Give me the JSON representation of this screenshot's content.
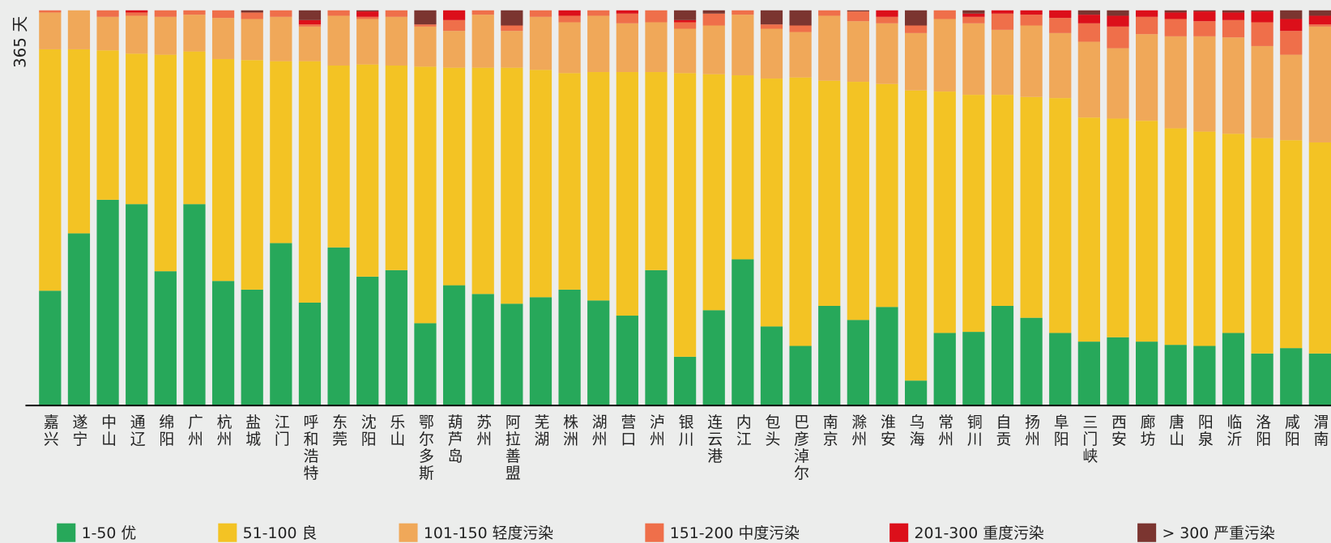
{
  "chart_data": {
    "type": "stacked_bar",
    "ylabel": "365 天",
    "ylim": [
      0,
      365
    ],
    "categories": [
      "嘉兴",
      "遂宁",
      "中山",
      "通辽",
      "绵阳",
      "广州",
      "杭州",
      "盐城",
      "江门",
      "呼和浩特",
      "东莞",
      "沈阳",
      "乐山",
      "鄂尔多斯",
      "葫芦岛",
      "苏州",
      "阿拉善盟",
      "芜湖",
      "株洲",
      "湖州",
      "营口",
      "泸州",
      "银川",
      "连云港",
      "内江",
      "包头",
      "巴彦淖尔",
      "南京",
      "滁州",
      "淮安",
      "乌海",
      "常州",
      "铜川",
      "自贡",
      "扬州",
      "阜阳",
      "三门峡",
      "西安",
      "廊坊",
      "唐山",
      "阳泉",
      "临沂",
      "洛阳",
      "咸阳",
      "渭南"
    ],
    "series": [
      {
        "name": "1-50 优",
        "color": "#27a85a",
        "values": [
          106,
          159,
          190,
          186,
          124,
          186,
          115,
          107,
          150,
          95,
          146,
          119,
          125,
          76,
          111,
          103,
          94,
          100,
          107,
          97,
          83,
          125,
          45,
          88,
          135,
          73,
          55,
          92,
          79,
          91,
          23,
          67,
          68,
          92,
          81,
          67,
          59,
          63,
          59,
          56,
          55,
          67,
          48,
          53,
          48
        ]
      },
      {
        "name": "51-100 良",
        "color": "#f3c324",
        "values": [
          223,
          170,
          138,
          139,
          200,
          141,
          205,
          212,
          168,
          223,
          168,
          196,
          189,
          237,
          201,
          209,
          218,
          210,
          200,
          211,
          225,
          183,
          262,
          218,
          170,
          229,
          248,
          208,
          220,
          206,
          268,
          223,
          219,
          195,
          204,
          217,
          207,
          202,
          204,
          200,
          198,
          184,
          199,
          192,
          195
        ]
      },
      {
        "name": "101-150 轻度污染",
        "color": "#f0a859",
        "values": [
          34,
          36,
          31,
          35,
          35,
          34,
          38,
          38,
          41,
          32,
          46,
          42,
          45,
          37,
          34,
          49,
          34,
          49,
          47,
          52,
          45,
          46,
          41,
          45,
          56,
          46,
          42,
          60,
          56,
          56,
          53,
          67,
          66,
          60,
          66,
          60,
          70,
          65,
          80,
          85,
          88,
          89,
          85,
          79,
          107
        ]
      },
      {
        "name": "151-200 中度污染",
        "color": "#ef6f4a",
        "values": [
          2,
          0,
          6,
          3,
          6,
          4,
          7,
          6,
          6,
          2,
          5,
          2,
          6,
          2,
          10,
          4,
          5,
          6,
          6,
          5,
          9,
          11,
          6,
          11,
          4,
          4,
          6,
          5,
          9,
          6,
          7,
          8,
          6,
          15,
          10,
          14,
          17,
          20,
          16,
          16,
          14,
          16,
          22,
          22,
          2
        ]
      },
      {
        "name": "201-300 重度污染",
        "color": "#dc0f1a",
        "values": [
          0,
          0,
          0,
          2,
          0,
          0,
          0,
          0,
          0,
          4,
          0,
          5,
          0,
          0,
          9,
          0,
          0,
          0,
          5,
          0,
          3,
          0,
          2,
          0,
          0,
          0,
          0,
          0,
          0,
          6,
          0,
          0,
          3,
          3,
          4,
          7,
          8,
          10,
          6,
          6,
          9,
          7,
          10,
          11,
          8
        ]
      },
      {
        "name": "> 300 严重污染",
        "color": "#7b3530",
        "values": [
          0,
          0,
          0,
          0,
          0,
          0,
          0,
          2,
          0,
          9,
          0,
          1,
          0,
          13,
          0,
          0,
          14,
          0,
          0,
          0,
          0,
          0,
          9,
          3,
          0,
          13,
          14,
          0,
          1,
          0,
          14,
          0,
          3,
          0,
          0,
          0,
          4,
          5,
          0,
          2,
          1,
          2,
          1,
          8,
          5
        ]
      }
    ]
  }
}
